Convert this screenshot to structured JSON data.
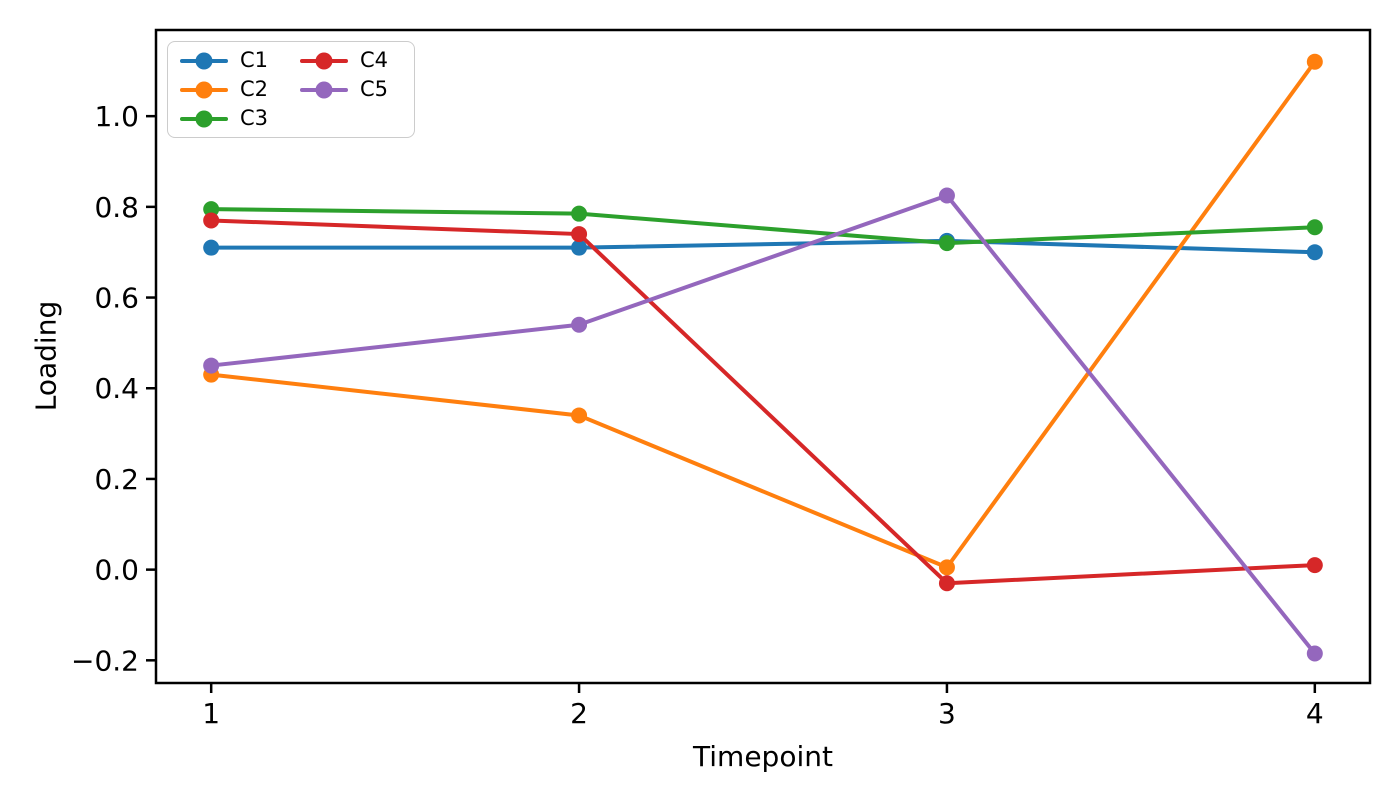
{
  "chart_data": {
    "type": "line",
    "title": "",
    "xlabel": "Timepoint",
    "ylabel": "Loading",
    "x": [
      1,
      2,
      3,
      4
    ],
    "series": [
      {
        "name": "C1",
        "color": "#1f77b4",
        "values": [
          0.71,
          0.71,
          0.725,
          0.7
        ]
      },
      {
        "name": "C2",
        "color": "#ff7f0e",
        "values": [
          0.43,
          0.34,
          0.005,
          1.12
        ]
      },
      {
        "name": "C3",
        "color": "#2ca02c",
        "values": [
          0.795,
          0.785,
          0.72,
          0.755
        ]
      },
      {
        "name": "C4",
        "color": "#d62728",
        "values": [
          0.77,
          0.74,
          -0.03,
          0.01
        ]
      },
      {
        "name": "C5",
        "color": "#9467bd",
        "values": [
          0.45,
          0.54,
          0.825,
          -0.185
        ]
      }
    ],
    "xticks": {
      "values": [
        1,
        2,
        3,
        4
      ],
      "labels": [
        "1",
        "2",
        "3",
        "4"
      ]
    },
    "yticks": {
      "values": [
        -0.2,
        0.0,
        0.2,
        0.4,
        0.6,
        0.8,
        1.0
      ],
      "labels": [
        "−0.2",
        "0.0",
        "0.2",
        "0.4",
        "0.6",
        "0.8",
        "1.0"
      ]
    },
    "xlim": [
      0.85,
      4.15
    ],
    "ylim": [
      -0.25,
      1.19
    ],
    "grid": false,
    "marker": "circle",
    "legend": {
      "position": "upper left",
      "ncol": 2,
      "entries": [
        "C1",
        "C2",
        "C3",
        "C4",
        "C5"
      ]
    },
    "axis_color": "#000000",
    "background_color": "#ffffff"
  }
}
